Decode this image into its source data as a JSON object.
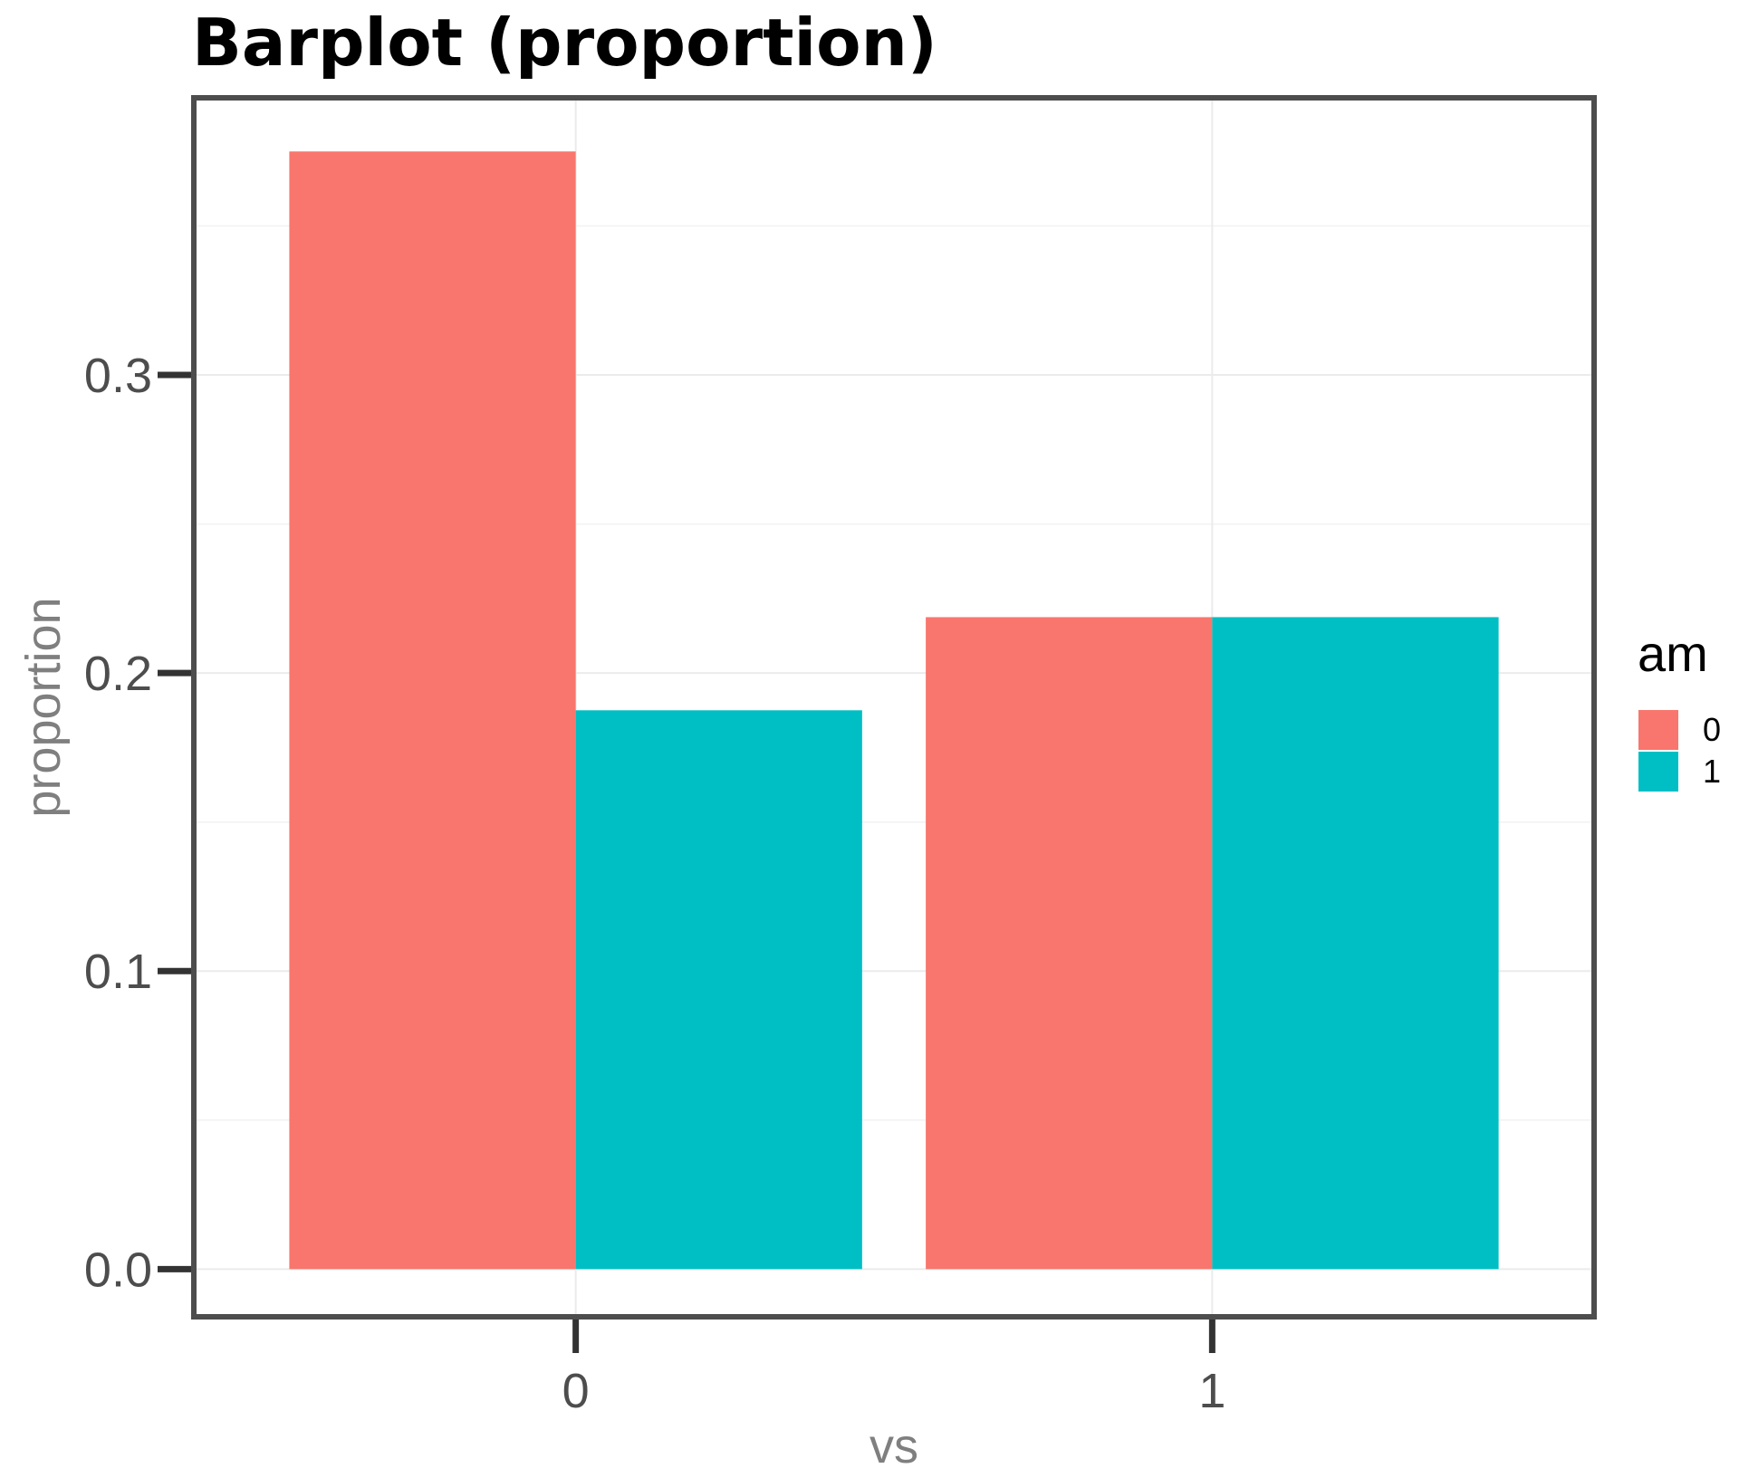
{
  "chart_data": {
    "type": "bar",
    "title": "Barplot (proportion)",
    "xlabel": "vs",
    "ylabel": "proportion",
    "categories": [
      "0",
      "1"
    ],
    "series": [
      {
        "name": "0",
        "values": [
          0.375,
          0.21875
        ],
        "color": "#F8766D"
      },
      {
        "name": "1",
        "values": [
          0.1875,
          0.21875
        ],
        "color": "#00BFC4"
      }
    ],
    "yticks": [
      0.0,
      0.1,
      0.2,
      0.3
    ],
    "ytick_labels": [
      "0.0",
      "0.1",
      "0.2",
      "0.3"
    ],
    "ylim": [
      -0.016,
      0.393
    ],
    "legend": {
      "title": "am",
      "position": "right"
    },
    "grid": true
  }
}
